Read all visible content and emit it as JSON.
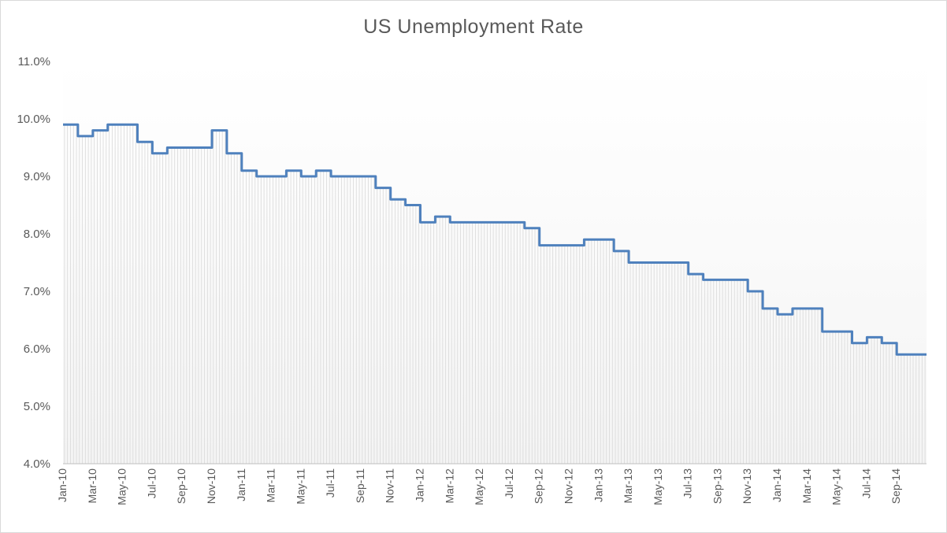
{
  "chart_data": {
    "type": "line",
    "title": "US Unemployment Rate",
    "xlabel": "",
    "ylabel": "",
    "ylim": [
      4.0,
      11.0
    ],
    "y_ticks": [
      "4.0%",
      "5.0%",
      "6.0%",
      "7.0%",
      "8.0%",
      "9.0%",
      "10.0%",
      "11.0%"
    ],
    "x_tick_labels": [
      "Jan-10",
      "Mar-10",
      "May-10",
      "Jul-10",
      "Sep-10",
      "Nov-10",
      "Jan-11",
      "Mar-11",
      "May-11",
      "Jul-11",
      "Sep-11",
      "Nov-11",
      "Jan-12",
      "Mar-12",
      "May-12",
      "Jul-12",
      "Sep-12",
      "Nov-12",
      "Jan-13",
      "Mar-13",
      "May-13",
      "Jul-13",
      "Sep-13",
      "Nov-13",
      "Jan-14",
      "Mar-14",
      "May-14",
      "Jul-14",
      "Sep-14"
    ],
    "grid": "light vertical hatching under the line",
    "legend": "none",
    "line_color": "#4f81bd",
    "fill_color": "#d9d9d9",
    "series": [
      {
        "x": [
          "Jan-10",
          "Feb-10",
          "Mar-10",
          "Apr-10",
          "May-10",
          "Jun-10",
          "Jul-10",
          "Aug-10",
          "Sep-10",
          "Oct-10",
          "Nov-10",
          "Dec-10",
          "Jan-11",
          "Feb-11",
          "Mar-11",
          "Apr-11",
          "May-11",
          "Jun-11",
          "Jul-11",
          "Aug-11",
          "Sep-11",
          "Oct-11",
          "Nov-11",
          "Dec-11",
          "Jan-12",
          "Feb-12",
          "Mar-12",
          "Apr-12",
          "May-12",
          "Jun-12",
          "Jul-12",
          "Aug-12",
          "Sep-12",
          "Oct-12",
          "Nov-12",
          "Dec-12",
          "Jan-13",
          "Feb-13",
          "Mar-13",
          "Apr-13",
          "May-13",
          "Jun-13",
          "Jul-13",
          "Aug-13",
          "Sep-13",
          "Oct-13",
          "Nov-13",
          "Dec-13",
          "Jan-14",
          "Feb-14",
          "Mar-14",
          "Apr-14",
          "May-14",
          "Jun-14",
          "Jul-14",
          "Aug-14",
          "Sep-14",
          "Oct-14"
        ],
        "values": [
          9.9,
          9.7,
          9.8,
          9.9,
          9.9,
          9.6,
          9.4,
          9.5,
          9.5,
          9.5,
          9.8,
          9.4,
          9.1,
          9.0,
          9.0,
          9.1,
          9.0,
          9.1,
          9.0,
          9.0,
          9.0,
          8.8,
          8.6,
          8.5,
          8.2,
          8.3,
          8.2,
          8.2,
          8.2,
          8.2,
          8.2,
          8.1,
          7.8,
          7.8,
          7.8,
          7.9,
          7.9,
          7.7,
          7.5,
          7.5,
          7.5,
          7.5,
          7.3,
          7.2,
          7.2,
          7.2,
          7.0,
          6.7,
          6.6,
          6.7,
          6.7,
          6.3,
          6.3,
          6.1,
          6.2,
          6.1,
          5.9,
          5.9
        ]
      }
    ]
  }
}
